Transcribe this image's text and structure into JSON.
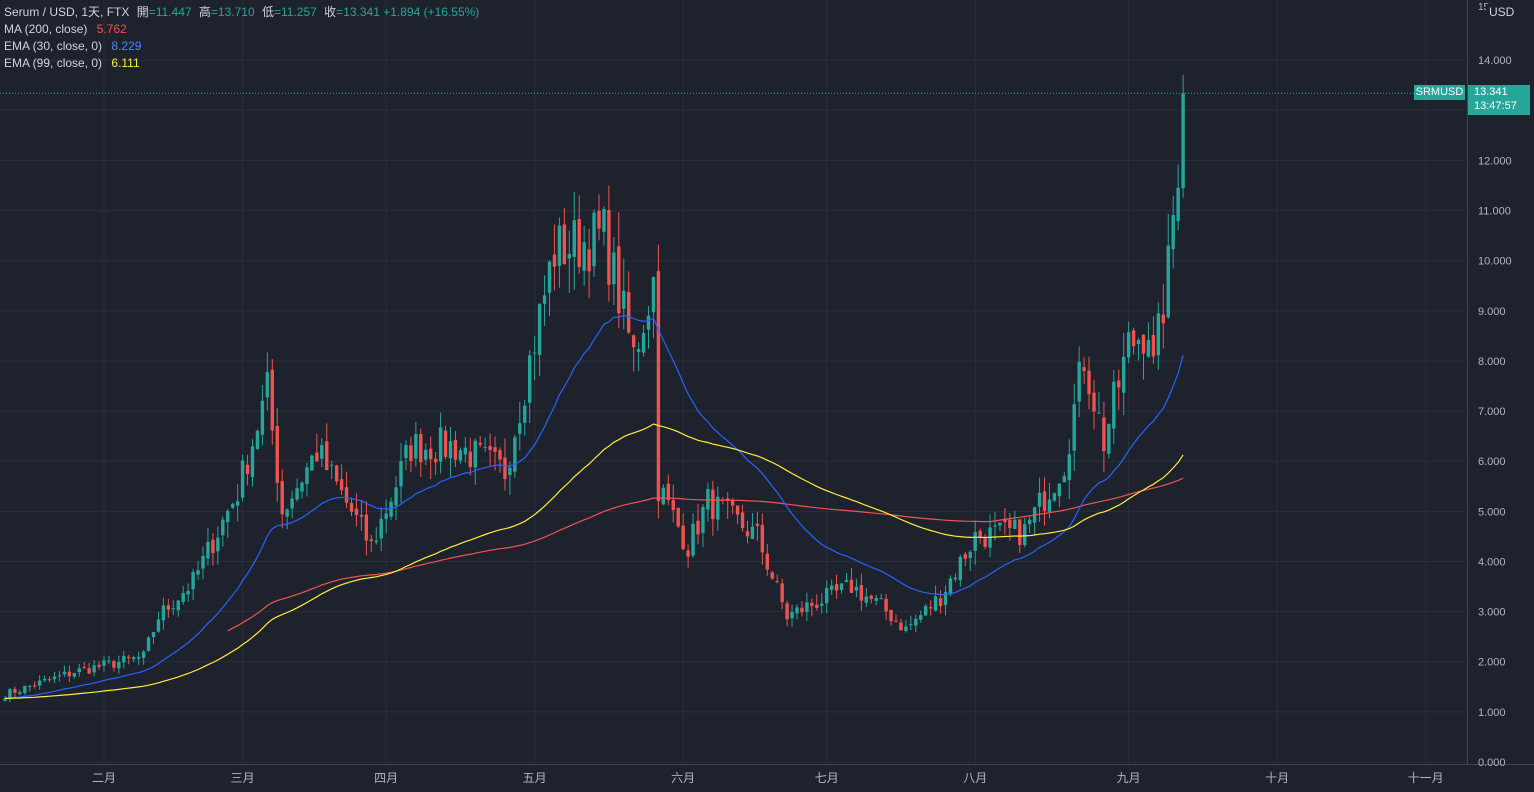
{
  "legend": {
    "symbol_line": "Serum / USD, 1天, FTX",
    "ohlc": {
      "open_label": "開",
      "open": "=11.447",
      "high_label": "高",
      "high": "=13.710",
      "low_label": "低",
      "low": "=11.257",
      "close_label": "收",
      "close": "=13.341",
      "change": "+1.894 (+16.55%)"
    },
    "indicators": [
      {
        "label": "MA (200, close)",
        "value": "5.762",
        "color": "#ef5350"
      },
      {
        "label": "EMA (30, close, 0)",
        "value": "8.229",
        "color": "#2962ff"
      },
      {
        "label": "EMA (99, close, 0)",
        "value": "6.111",
        "color": "#ffeb3b"
      }
    ]
  },
  "price_axis": {
    "currency": "USD",
    "top_tick": "15",
    "ticks": [
      "14.000",
      "13.000",
      "12.000",
      "11.000",
      "10.000",
      "9.000",
      "8.000",
      "7.000",
      "6.000",
      "5.000",
      "4.000",
      "3.000",
      "2.000",
      "1.000",
      "0.000"
    ]
  },
  "current": {
    "symbol": "SRMUSD",
    "price": "13.341",
    "countdown": "13:47:57"
  },
  "time_axis": {
    "labels": [
      "二月",
      "三月",
      "四月",
      "五月",
      "六月",
      "七月",
      "八月",
      "九月",
      "十月",
      "十一月"
    ]
  },
  "colors": {
    "up": "#26a69a",
    "down": "#ef5350",
    "ma200": "#ef5350",
    "ema30": "#2962ff",
    "ema99": "#ffeb3b",
    "background": "#1e222d",
    "grid": "#2a2e39"
  },
  "chart_data": {
    "type": "candlestick",
    "ylim": [
      0,
      15
    ],
    "x_labels": [
      "二月",
      "三月",
      "四月",
      "五月",
      "六月",
      "七月",
      "八月",
      "九月",
      "十月",
      "十一月"
    ],
    "price_keypoints": [
      [
        0,
        1.35
      ],
      [
        14,
        1.8
      ],
      [
        28,
        2.1
      ],
      [
        31,
        2.9
      ],
      [
        38,
        3.6
      ],
      [
        47,
        5.4
      ],
      [
        53,
        7.4
      ],
      [
        56,
        5.0
      ],
      [
        63,
        6.2
      ],
      [
        74,
        4.3
      ],
      [
        82,
        6.3
      ],
      [
        91,
        6.3
      ],
      [
        101,
        5.8
      ],
      [
        111,
        10.2
      ],
      [
        121,
        10.5
      ],
      [
        127,
        8.1
      ],
      [
        131,
        9.6
      ],
      [
        132,
        5.5
      ],
      [
        138,
        4.3
      ],
      [
        142,
        5.2
      ],
      [
        152,
        4.5
      ],
      [
        158,
        2.9
      ],
      [
        162,
        3.1
      ],
      [
        171,
        3.5
      ],
      [
        177,
        3.1
      ],
      [
        182,
        2.65
      ],
      [
        189,
        3.3
      ],
      [
        196,
        4.5
      ],
      [
        206,
        4.6
      ],
      [
        214,
        6.0
      ],
      [
        218,
        8.1
      ],
      [
        222,
        6.4
      ],
      [
        227,
        8.3
      ],
      [
        231,
        8.7
      ],
      [
        232,
        7.8
      ],
      [
        235,
        9.8
      ],
      [
        237,
        12.0
      ],
      [
        238,
        13.341
      ]
    ],
    "series": [
      {
        "name": "MA (200, close)",
        "last": 5.762
      },
      {
        "name": "EMA (30, close, 0)",
        "last": 8.229
      },
      {
        "name": "EMA (99, close, 0)",
        "last": 6.111
      }
    ],
    "last": {
      "open": 11.447,
      "high": 13.71,
      "low": 11.257,
      "close": 13.341
    }
  }
}
